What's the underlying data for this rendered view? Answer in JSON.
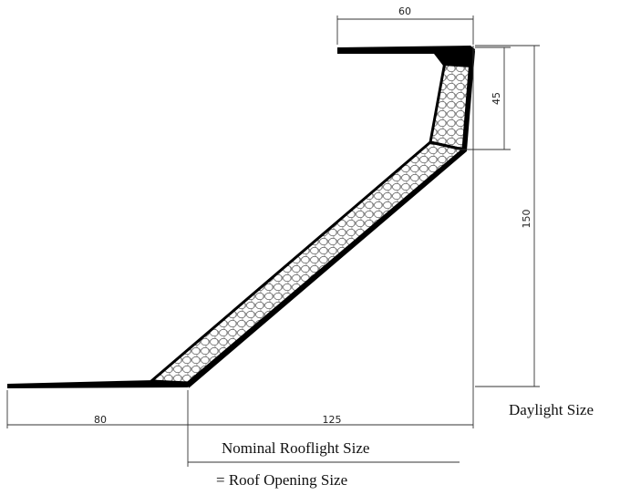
{
  "dimensions": {
    "top_width": "60",
    "upstand_height": "45",
    "total_height": "150",
    "base_flange": "80",
    "base_width": "125"
  },
  "labels": {
    "daylight_size": "Daylight Size",
    "nominal_rooflight_size": "Nominal Rooflight Size",
    "roof_opening_size": "= Roof Opening Size"
  },
  "colors": {
    "profile": "#000000",
    "insulation_hatch": "#555555",
    "dimension_line": "#333333"
  }
}
